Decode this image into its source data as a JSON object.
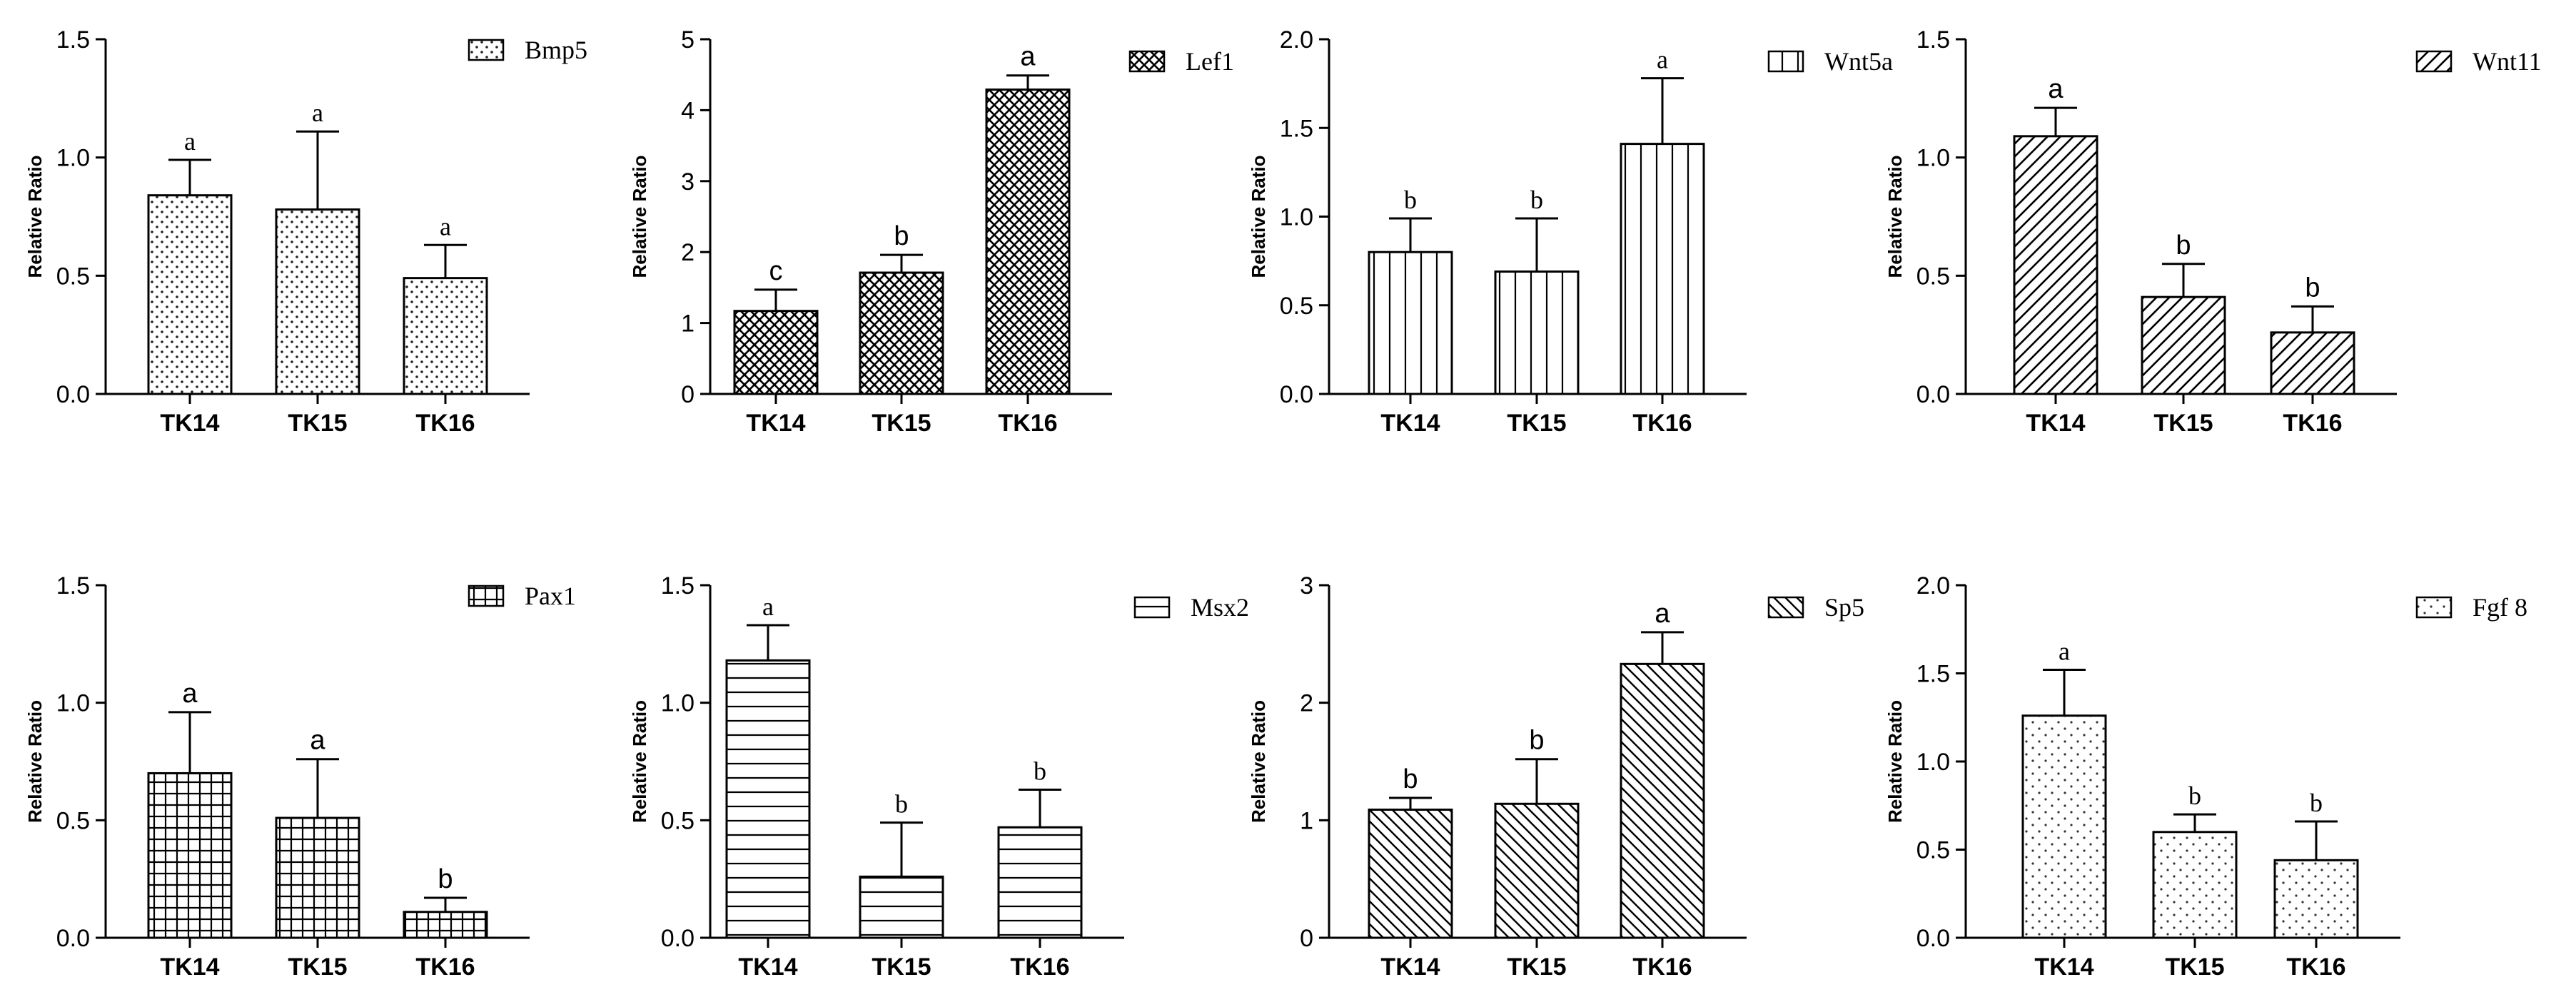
{
  "chart_data": [
    {
      "type": "bar",
      "gene": "Bmp5",
      "title": "",
      "xlabel": "",
      "ylabel": "Relative Ratio",
      "ylim": [
        0,
        1.5
      ],
      "yticks": [
        "0.0",
        "0.5",
        "1.0",
        "1.5"
      ],
      "categories": [
        "TK14",
        "TK15",
        "TK16"
      ],
      "values": [
        0.84,
        0.78,
        0.49
      ],
      "errors": [
        0.15,
        0.33,
        0.14
      ],
      "significance": [
        "a",
        "a",
        "a"
      ],
      "pattern": "dots",
      "legend": "Bmp5"
    },
    {
      "type": "bar",
      "gene": "Lef1",
      "title": "",
      "xlabel": "",
      "ylabel": "Relative Ratio",
      "ylim": [
        0,
        5
      ],
      "yticks": [
        "0",
        "1",
        "2",
        "3",
        "4",
        "5"
      ],
      "categories": [
        "TK14",
        "TK15",
        "TK16"
      ],
      "values": [
        1.17,
        1.71,
        4.29
      ],
      "errors": [
        0.3,
        0.25,
        0.2
      ],
      "significance": [
        "c",
        "b",
        "a"
      ],
      "pattern": "crosshatch",
      "legend": "Lef1"
    },
    {
      "type": "bar",
      "gene": "Wnt5a",
      "title": "",
      "xlabel": "",
      "ylabel": "Relative Ratio",
      "ylim": [
        0,
        2.0
      ],
      "yticks": [
        "0.0",
        "0.5",
        "1.0",
        "1.5",
        "2.0"
      ],
      "categories": [
        "TK14",
        "TK15",
        "TK16"
      ],
      "values": [
        0.8,
        0.69,
        1.41
      ],
      "errors": [
        0.19,
        0.3,
        0.37
      ],
      "significance": [
        "b",
        "b",
        "a"
      ],
      "pattern": "vlines",
      "legend": "Wnt5a"
    },
    {
      "type": "bar",
      "gene": "Wnt11",
      "title": "",
      "xlabel": "",
      "ylabel": "Relative Ratio",
      "ylim": [
        0,
        1.5
      ],
      "yticks": [
        "0.0",
        "0.5",
        "1.0",
        "1.5"
      ],
      "categories": [
        "TK14",
        "TK15",
        "TK16"
      ],
      "values": [
        1.09,
        0.41,
        0.26
      ],
      "errors": [
        0.12,
        0.14,
        0.11
      ],
      "significance": [
        "a",
        "b",
        "b"
      ],
      "pattern": "diag-up",
      "legend": "Wnt11"
    },
    {
      "type": "bar",
      "gene": "Pax1",
      "title": "",
      "xlabel": "",
      "ylabel": "Relative Ratio",
      "ylim": [
        0,
        1.5
      ],
      "yticks": [
        "0.0",
        "0.5",
        "1.0",
        "1.5"
      ],
      "categories": [
        "TK14",
        "TK15",
        "TK16"
      ],
      "values": [
        0.7,
        0.51,
        0.11
      ],
      "errors": [
        0.26,
        0.25,
        0.06
      ],
      "significance": [
        "a",
        "a",
        "b"
      ],
      "pattern": "grid",
      "legend": "Pax1"
    },
    {
      "type": "bar",
      "gene": "Msx2",
      "title": "",
      "xlabel": "",
      "ylabel": "Relative Ratio",
      "ylim": [
        0,
        1.5
      ],
      "yticks": [
        "0.0",
        "0.5",
        "1.0",
        "1.5"
      ],
      "categories": [
        "TK14",
        "TK15",
        "TK16"
      ],
      "values": [
        1.18,
        0.26,
        0.47
      ],
      "errors": [
        0.15,
        0.23,
        0.16
      ],
      "significance": [
        "a",
        "b",
        "b"
      ],
      "pattern": "hlines",
      "legend": "Msx2"
    },
    {
      "type": "bar",
      "gene": "Sp5",
      "title": "",
      "xlabel": "",
      "ylabel": "Relative Ratio",
      "ylim": [
        0,
        3
      ],
      "yticks": [
        "0",
        "1",
        "2",
        "3"
      ],
      "categories": [
        "TK14",
        "TK15",
        "TK16"
      ],
      "values": [
        1.09,
        1.14,
        2.33
      ],
      "errors": [
        0.1,
        0.38,
        0.27
      ],
      "significance": [
        "b",
        "b",
        "a"
      ],
      "pattern": "diag-down",
      "legend": "Sp5"
    },
    {
      "type": "bar",
      "gene": "Fgf8",
      "title": "",
      "xlabel": "",
      "ylabel": "Relative Ratio",
      "ylim": [
        0,
        2.0
      ],
      "yticks": [
        "0.0",
        "0.5",
        "1.0",
        "1.5",
        "2.0"
      ],
      "categories": [
        "TK14",
        "TK15",
        "TK16"
      ],
      "values": [
        1.26,
        0.6,
        0.44
      ],
      "errors": [
        0.26,
        0.1,
        0.22
      ],
      "significance": [
        "a",
        "b",
        "b"
      ],
      "pattern": "dots-sparse",
      "legend": "Fgf 8"
    }
  ]
}
